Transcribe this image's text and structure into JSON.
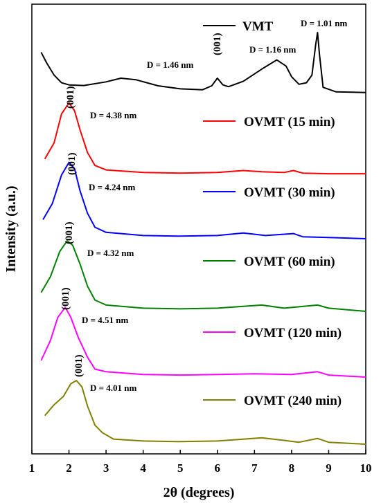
{
  "chart_data": {
    "type": "line",
    "xlabel": "2θ (degrees)",
    "ylabel": "Intensity (a.u.)",
    "xlim": [
      1,
      10
    ],
    "x_ticks": [
      "1",
      "2",
      "3",
      "4",
      "5",
      "6",
      "7",
      "8",
      "9",
      "10"
    ],
    "grid": false,
    "legend": "right",
    "series": [
      {
        "name": "VMT",
        "color": "#000000",
        "offset": 5.0,
        "points": [
          [
            1.25,
            1.35
          ],
          [
            1.4,
            1.0
          ],
          [
            1.6,
            0.6
          ],
          [
            1.8,
            0.35
          ],
          [
            2.0,
            0.28
          ],
          [
            2.4,
            0.26
          ],
          [
            3.0,
            0.38
          ],
          [
            3.4,
            0.5
          ],
          [
            3.8,
            0.45
          ],
          [
            4.4,
            0.25
          ],
          [
            5.0,
            0.15
          ],
          [
            5.6,
            0.12
          ],
          [
            5.85,
            0.25
          ],
          [
            6.0,
            0.5
          ],
          [
            6.15,
            0.28
          ],
          [
            6.3,
            0.22
          ],
          [
            6.7,
            0.4
          ],
          [
            7.2,
            0.8
          ],
          [
            7.6,
            1.1
          ],
          [
            7.85,
            0.9
          ],
          [
            8.0,
            0.55
          ],
          [
            8.2,
            0.3
          ],
          [
            8.4,
            0.35
          ],
          [
            8.55,
            0.6
          ],
          [
            8.65,
            1.6
          ],
          [
            8.7,
            2.0
          ],
          [
            8.75,
            1.3
          ],
          [
            8.85,
            0.2
          ],
          [
            9.2,
            0.05
          ],
          [
            10.0,
            0.03
          ]
        ]
      },
      {
        "name": "OVMT (15 min)",
        "color": "#ff0000",
        "offset": 4.0,
        "points": [
          [
            1.35,
            0.25
          ],
          [
            1.6,
            0.5
          ],
          [
            1.8,
            0.95
          ],
          [
            2.0,
            1.12
          ],
          [
            2.15,
            1.0
          ],
          [
            2.3,
            0.7
          ],
          [
            2.5,
            0.35
          ],
          [
            2.7,
            0.15
          ],
          [
            3.0,
            0.08
          ],
          [
            4.0,
            0.04
          ],
          [
            5.0,
            0.03
          ],
          [
            6.0,
            0.04
          ],
          [
            6.7,
            0.07
          ],
          [
            7.2,
            0.05
          ],
          [
            7.8,
            0.04
          ],
          [
            8.05,
            0.07
          ],
          [
            8.3,
            0.03
          ],
          [
            9.0,
            0.02
          ],
          [
            10.0,
            0.02
          ]
        ]
      },
      {
        "name": "OVMT (30 min)",
        "color": "#0000ff",
        "offset": 3.0,
        "points": [
          [
            1.3,
            0.3
          ],
          [
            1.55,
            0.55
          ],
          [
            1.8,
            1.0
          ],
          [
            2.0,
            1.2
          ],
          [
            2.15,
            1.1
          ],
          [
            2.3,
            0.75
          ],
          [
            2.5,
            0.4
          ],
          [
            2.7,
            0.18
          ],
          [
            3.0,
            0.1
          ],
          [
            4.0,
            0.05
          ],
          [
            5.0,
            0.04
          ],
          [
            6.0,
            0.05
          ],
          [
            6.7,
            0.09
          ],
          [
            7.3,
            0.05
          ],
          [
            8.05,
            0.08
          ],
          [
            8.3,
            0.03
          ],
          [
            9.0,
            0.02
          ],
          [
            10.0,
            0.0
          ]
        ]
      },
      {
        "name": "OVMT (60 min)",
        "color": "#008000",
        "offset": 2.0,
        "points": [
          [
            1.25,
            0.3
          ],
          [
            1.5,
            0.55
          ],
          [
            1.75,
            0.95
          ],
          [
            1.95,
            1.12
          ],
          [
            2.1,
            1.05
          ],
          [
            2.3,
            0.75
          ],
          [
            2.5,
            0.4
          ],
          [
            2.7,
            0.18
          ],
          [
            3.0,
            0.1
          ],
          [
            4.0,
            0.05
          ],
          [
            5.0,
            0.04
          ],
          [
            6.0,
            0.05
          ],
          [
            7.2,
            0.1
          ],
          [
            7.8,
            0.05
          ],
          [
            8.7,
            0.1
          ],
          [
            9.0,
            0.05
          ],
          [
            10.0,
            0.0
          ]
        ]
      },
      {
        "name": "OVMT (120 min)",
        "color": "#ff00ff",
        "offset": 1.0,
        "points": [
          [
            1.25,
            0.25
          ],
          [
            1.5,
            0.55
          ],
          [
            1.7,
            0.9
          ],
          [
            1.9,
            1.05
          ],
          [
            2.05,
            0.9
          ],
          [
            2.25,
            0.6
          ],
          [
            2.5,
            0.3
          ],
          [
            2.7,
            0.12
          ],
          [
            3.0,
            0.08
          ],
          [
            4.0,
            0.04
          ],
          [
            5.0,
            0.03
          ],
          [
            6.0,
            0.04
          ],
          [
            7.0,
            0.05
          ],
          [
            8.0,
            0.04
          ],
          [
            8.7,
            0.08
          ],
          [
            9.0,
            0.03
          ],
          [
            10.0,
            0.0
          ]
        ]
      },
      {
        "name": "OVMT (240 min)",
        "color": "#808000",
        "offset": 0.0,
        "points": [
          [
            1.35,
            0.45
          ],
          [
            1.6,
            0.62
          ],
          [
            1.85,
            0.75
          ],
          [
            2.05,
            0.95
          ],
          [
            2.2,
            1.0
          ],
          [
            2.35,
            0.9
          ],
          [
            2.5,
            0.6
          ],
          [
            2.7,
            0.3
          ],
          [
            2.9,
            0.18
          ],
          [
            3.2,
            0.08
          ],
          [
            4.0,
            0.05
          ],
          [
            5.0,
            0.04
          ],
          [
            6.0,
            0.05
          ],
          [
            7.2,
            0.1
          ],
          [
            7.8,
            0.06
          ],
          [
            8.2,
            0.03
          ],
          [
            8.7,
            0.09
          ],
          [
            9.0,
            0.03
          ],
          [
            10.0,
            0.0
          ]
        ]
      }
    ],
    "annotations": [
      {
        "text": "D = 1.01 nm",
        "x": 8.7,
        "series": 0
      },
      {
        "text": "D = 1.16 nm",
        "x": 7.6,
        "series": 0
      },
      {
        "text": "D = 1.46 nm",
        "x": 6.0,
        "series": 0
      },
      {
        "text": "D = 4.38 nm",
        "x": 2.0,
        "series": 1
      },
      {
        "text": "D = 4.24 nm",
        "x": 2.0,
        "series": 2
      },
      {
        "text": "D = 4.32 nm",
        "x": 1.95,
        "series": 3
      },
      {
        "text": "D = 4.51 nm",
        "x": 1.9,
        "series": 4
      },
      {
        "text": "D = 4.01 nm",
        "x": 2.2,
        "series": 5
      }
    ],
    "peak_labels": [
      {
        "text": "(001)",
        "x": 6.0,
        "series": 0
      },
      {
        "text": "(001)",
        "x": 2.0,
        "series": 1
      },
      {
        "text": "(001)",
        "x": 2.0,
        "series": 2
      },
      {
        "text": "(001)",
        "x": 1.95,
        "series": 3
      },
      {
        "text": "(001)",
        "x": 1.9,
        "series": 4
      },
      {
        "text": "(001)",
        "x": 2.2,
        "series": 5
      }
    ]
  }
}
